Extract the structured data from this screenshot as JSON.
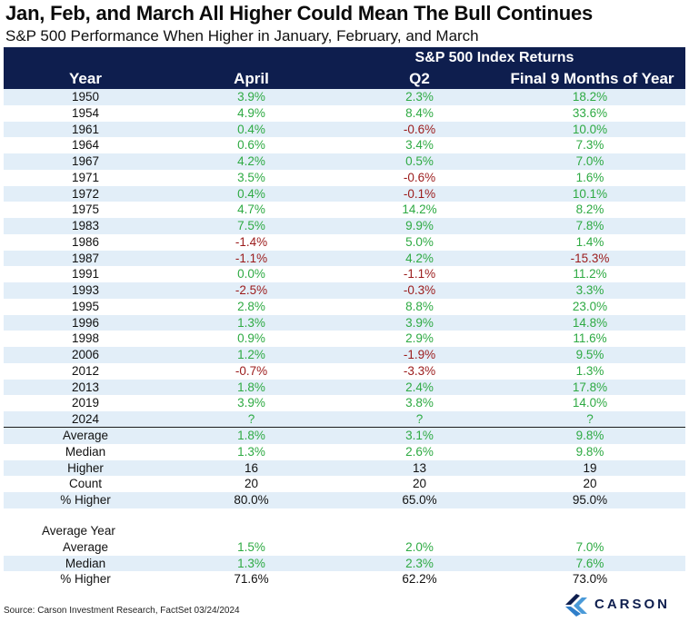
{
  "title": "Jan, Feb, and March All Higher Could Mean The Bull Continues",
  "subtitle": "S&P 500 Performance When Higher in January, February, and March",
  "source": "Source: Carson Investment Research, FactSet 03/24/2024",
  "logo_text": "CARSON",
  "colors": {
    "header_bg": "#0e1e4e",
    "shade": "#e2eef8",
    "positive": "#2eaa43",
    "negative": "#9b1b1b"
  },
  "chart_data": {
    "type": "table",
    "group_header": "S&P 500 Index Returns",
    "columns": [
      "Year",
      "April",
      "Q2",
      "Final 9 Months of Year"
    ],
    "rows": [
      [
        "1950",
        "3.9%",
        "2.3%",
        "18.2%"
      ],
      [
        "1954",
        "4.9%",
        "8.4%",
        "33.6%"
      ],
      [
        "1961",
        "0.4%",
        "-0.6%",
        "10.0%"
      ],
      [
        "1964",
        "0.6%",
        "3.4%",
        "7.3%"
      ],
      [
        "1967",
        "4.2%",
        "0.5%",
        "7.0%"
      ],
      [
        "1971",
        "3.5%",
        "-0.6%",
        "1.6%"
      ],
      [
        "1972",
        "0.4%",
        "-0.1%",
        "10.1%"
      ],
      [
        "1975",
        "4.7%",
        "14.2%",
        "8.2%"
      ],
      [
        "1983",
        "7.5%",
        "9.9%",
        "7.8%"
      ],
      [
        "1986",
        "-1.4%",
        "5.0%",
        "1.4%"
      ],
      [
        "1987",
        "-1.1%",
        "4.2%",
        "-15.3%"
      ],
      [
        "1991",
        "0.0%",
        "-1.1%",
        "11.2%"
      ],
      [
        "1993",
        "-2.5%",
        "-0.3%",
        "3.3%"
      ],
      [
        "1995",
        "2.8%",
        "8.8%",
        "23.0%"
      ],
      [
        "1996",
        "1.3%",
        "3.9%",
        "14.8%"
      ],
      [
        "1998",
        "0.9%",
        "2.9%",
        "11.6%"
      ],
      [
        "2006",
        "1.2%",
        "-1.9%",
        "9.5%"
      ],
      [
        "2012",
        "-0.7%",
        "-3.3%",
        "1.3%"
      ],
      [
        "2013",
        "1.8%",
        "2.4%",
        "17.8%"
      ],
      [
        "2019",
        "3.9%",
        "3.8%",
        "14.0%"
      ],
      [
        "2024",
        "?",
        "?",
        "?"
      ]
    ],
    "summary": [
      [
        "Average",
        "1.8%",
        "3.1%",
        "9.8%"
      ],
      [
        "Median",
        "1.3%",
        "2.6%",
        "9.8%"
      ],
      [
        "Higher",
        "16",
        "13",
        "19"
      ],
      [
        "Count",
        "20",
        "20",
        "20"
      ],
      [
        "% Higher",
        "80.0%",
        "65.0%",
        "95.0%"
      ]
    ],
    "average_year_title": "Average Year",
    "average_year": [
      [
        "Average",
        "1.5%",
        "2.0%",
        "7.0%"
      ],
      [
        "Median",
        "1.3%",
        "2.3%",
        "7.6%"
      ],
      [
        "% Higher",
        "71.6%",
        "62.2%",
        "73.0%"
      ]
    ]
  }
}
